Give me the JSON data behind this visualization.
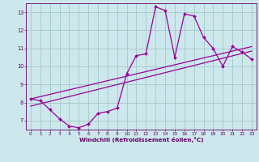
{
  "x_data": [
    0,
    1,
    2,
    3,
    4,
    5,
    6,
    7,
    8,
    9,
    10,
    11,
    12,
    13,
    14,
    15,
    16,
    17,
    18,
    19,
    20,
    21,
    22,
    23
  ],
  "y_main": [
    8.2,
    8.1,
    7.6,
    7.1,
    6.7,
    6.6,
    6.8,
    7.4,
    7.5,
    7.7,
    9.6,
    10.6,
    10.7,
    13.3,
    13.1,
    10.5,
    12.9,
    12.8,
    11.6,
    11.0,
    10.0,
    11.1,
    10.8,
    10.4
  ],
  "reg1_start": 8.2,
  "reg1_end": 11.1,
  "reg2_start": 7.8,
  "reg2_end": 10.85,
  "line_color": "#990099",
  "bg_color": "#cce8ec",
  "grid_color": "#aacccc",
  "axis_color": "#660066",
  "xlabel": "Windchill (Refroidissement éolien,°C)",
  "xlim": [
    -0.5,
    23.5
  ],
  "ylim": [
    6.5,
    13.5
  ],
  "yticks": [
    7,
    8,
    9,
    10,
    11,
    12,
    13
  ],
  "xticks": [
    0,
    1,
    2,
    3,
    4,
    5,
    6,
    7,
    8,
    9,
    10,
    11,
    12,
    13,
    14,
    15,
    16,
    17,
    18,
    19,
    20,
    21,
    22,
    23
  ]
}
